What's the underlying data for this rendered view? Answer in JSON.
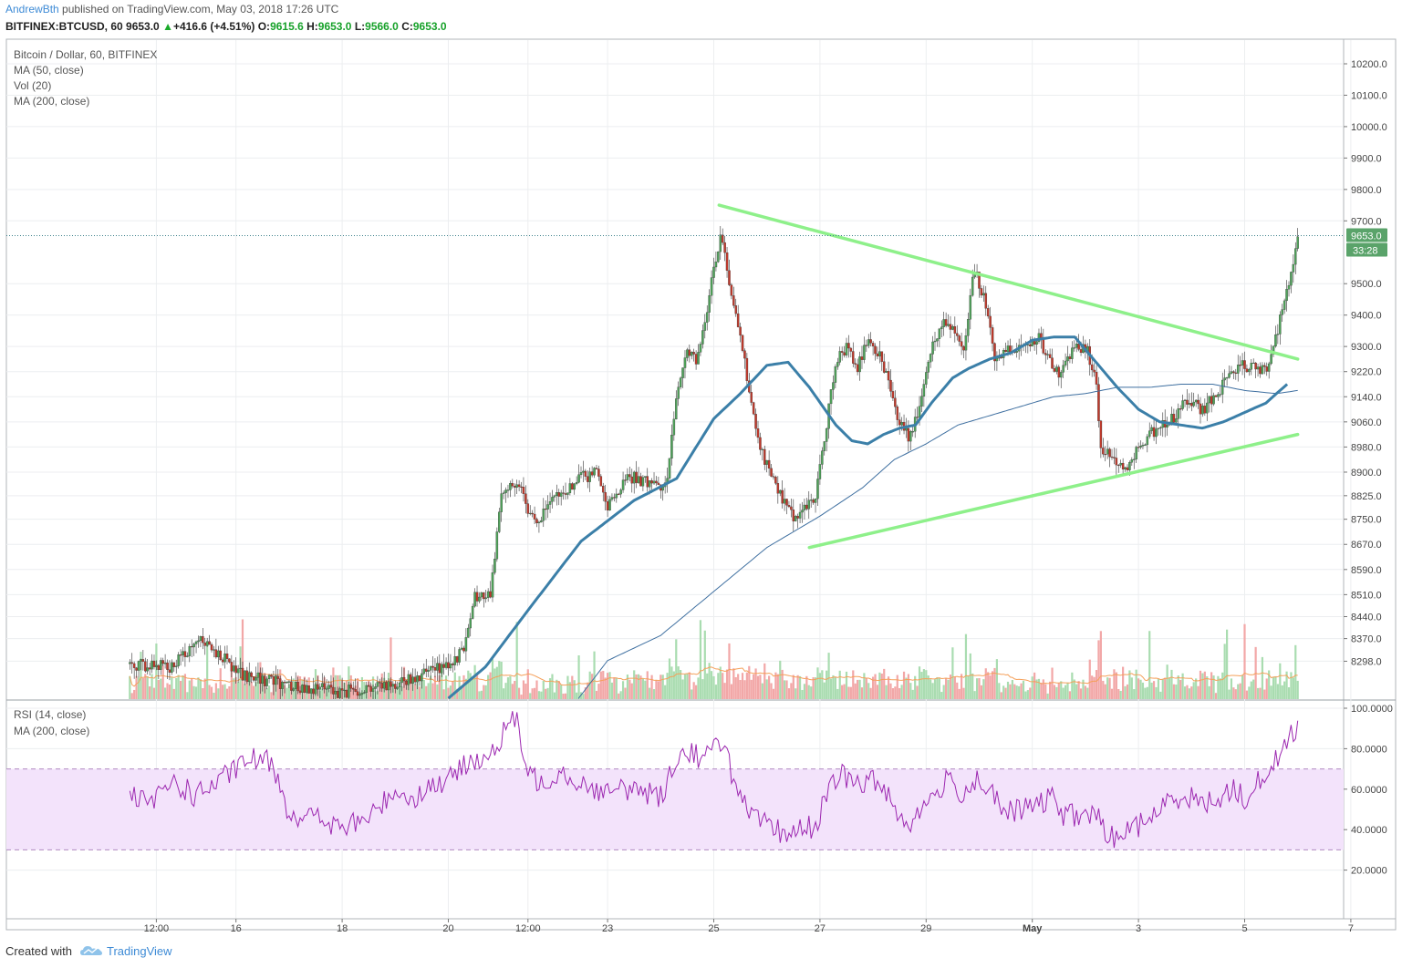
{
  "header": {
    "author": "AndrewBth",
    "published_text": "published on TradingView.com, May 03, 2018 17:26 UTC",
    "symbol": "BITFINEX:BTCUSD, 60",
    "last": "9653.0",
    "change_arrow": "▲",
    "change": "+416.6 (+4.51%)",
    "o_label": "O:",
    "o": "9615.6",
    "h_label": "H:",
    "h": "9653.0",
    "l_label": "L:",
    "l": "9566.0",
    "c_label": "C:",
    "c": "9653.0"
  },
  "legend": {
    "title": "Bitcoin / Dollar, 60, BITFINEX",
    "ma50": "MA (50, close)",
    "vol": "Vol (20)",
    "ma200": "MA (200, close)",
    "rsi": "RSI (14, close)",
    "rsi_ma": "MA (200, close)"
  },
  "footer": {
    "created_with": "Created with",
    "brand": "TradingView"
  },
  "colors": {
    "up": "#4fa35a",
    "down": "#c0392b",
    "vol_up": "#a9dcb0",
    "vol_down": "#f2a7a7",
    "ma50": "#3b7fa8",
    "ma200": "#3e6fa0",
    "trend": "#8ef08a",
    "rsi": "#9c27b0",
    "rsi_band": "#f3e3fb",
    "vol_ma": "#f5a05a",
    "last_tag": "#5aa36a"
  },
  "chart_data": [
    {
      "type": "candlestick",
      "title": "Bitcoin / Dollar, 60, BITFINEX",
      "y_tick_labels": [
        "10200.0",
        "10100.0",
        "10000.0",
        "9900.0",
        "9800.0",
        "9700.0",
        "9500.0",
        "9400.0",
        "9300.0",
        "9220.0",
        "9140.0",
        "9060.0",
        "8980.0",
        "8900.0",
        "8825.0",
        "8750.0",
        "8670.0",
        "8590.0",
        "8510.0",
        "8440.0",
        "8370.0",
        "8298.0"
      ],
      "x_tick_labels": [
        "12:00",
        "16",
        "18",
        "20",
        "12:00",
        "23",
        "25",
        "27",
        "29",
        "May",
        "3",
        "5",
        "7"
      ],
      "x_axis_days": [
        14.5,
        16,
        18,
        20,
        21.5,
        23,
        25,
        27,
        29,
        31,
        33,
        35,
        37
      ],
      "last_price": "9653.0",
      "countdown": "33:28",
      "anchors": [
        [
          14.0,
          8290
        ],
        [
          14.8,
          8280
        ],
        [
          15.3,
          8360
        ],
        [
          15.7,
          8320
        ],
        [
          16.0,
          8260
        ],
        [
          17.0,
          8220
        ],
        [
          18.0,
          8200
        ],
        [
          19.0,
          8230
        ],
        [
          19.9,
          8280
        ],
        [
          20.3,
          8330
        ],
        [
          20.5,
          8500
        ],
        [
          20.8,
          8520
        ],
        [
          21.0,
          8830
        ],
        [
          21.3,
          8870
        ],
        [
          21.6,
          8740
        ],
        [
          22.0,
          8810
        ],
        [
          22.5,
          8880
        ],
        [
          22.8,
          8900
        ],
        [
          23.0,
          8790
        ],
        [
          23.4,
          8890
        ],
        [
          23.8,
          8860
        ],
        [
          24.1,
          8850
        ],
        [
          24.3,
          9160
        ],
        [
          24.5,
          9280
        ],
        [
          24.7,
          9260
        ],
        [
          24.9,
          9420
        ],
        [
          25.0,
          9560
        ],
        [
          25.15,
          9660
        ],
        [
          25.3,
          9470
        ],
        [
          25.5,
          9330
        ],
        [
          25.7,
          9120
        ],
        [
          25.9,
          8960
        ],
        [
          26.1,
          8880
        ],
        [
          26.3,
          8810
        ],
        [
          26.5,
          8760
        ],
        [
          26.7,
          8780
        ],
        [
          26.9,
          8820
        ],
        [
          27.0,
          8910
        ],
        [
          27.3,
          9260
        ],
        [
          27.5,
          9300
        ],
        [
          27.7,
          9230
        ],
        [
          27.9,
          9320
        ],
        [
          28.1,
          9280
        ],
        [
          28.3,
          9190
        ],
        [
          28.5,
          9060
        ],
        [
          28.7,
          9010
        ],
        [
          28.9,
          9130
        ],
        [
          29.1,
          9290
        ],
        [
          29.3,
          9380
        ],
        [
          29.5,
          9350
        ],
        [
          29.7,
          9280
        ],
        [
          29.9,
          9540
        ],
        [
          30.1,
          9460
        ],
        [
          30.3,
          9260
        ],
        [
          30.5,
          9290
        ],
        [
          30.8,
          9300
        ],
        [
          31.1,
          9330
        ],
        [
          31.3,
          9270
        ],
        [
          31.5,
          9200
        ],
        [
          31.8,
          9290
        ],
        [
          32.0,
          9300
        ],
        [
          32.2,
          9200
        ],
        [
          32.3,
          8960
        ],
        [
          32.5,
          8960
        ],
        [
          32.8,
          8900
        ],
        [
          33.0,
          8980
        ],
        [
          33.3,
          9030
        ],
        [
          33.6,
          9060
        ],
        [
          33.9,
          9130
        ],
        [
          34.2,
          9100
        ],
        [
          34.5,
          9150
        ],
        [
          34.8,
          9230
        ],
        [
          35.1,
          9240
        ],
        [
          35.4,
          9220
        ],
        [
          35.6,
          9340
        ],
        [
          35.8,
          9480
        ],
        [
          36.0,
          9653
        ]
      ],
      "ma50_path": [
        [
          14.0,
          7900
        ],
        [
          18.0,
          7960
        ],
        [
          20.0,
          8180
        ],
        [
          20.7,
          8280
        ],
        [
          21.5,
          8460
        ],
        [
          22.5,
          8680
        ],
        [
          23.5,
          8810
        ],
        [
          24.3,
          8880
        ],
        [
          25.0,
          9070
        ],
        [
          25.5,
          9150
        ],
        [
          26.0,
          9240
        ],
        [
          26.4,
          9250
        ],
        [
          26.8,
          9170
        ],
        [
          27.3,
          9050
        ],
        [
          27.6,
          9000
        ],
        [
          27.9,
          8990
        ],
        [
          28.2,
          9020
        ],
        [
          28.5,
          9040
        ],
        [
          28.8,
          9050
        ],
        [
          29.1,
          9120
        ],
        [
          29.5,
          9200
        ],
        [
          29.8,
          9230
        ],
        [
          30.2,
          9260
        ],
        [
          30.6,
          9280
        ],
        [
          31.0,
          9320
        ],
        [
          31.4,
          9330
        ],
        [
          31.8,
          9330
        ],
        [
          32.2,
          9250
        ],
        [
          32.6,
          9170
        ],
        [
          33.0,
          9100
        ],
        [
          33.4,
          9060
        ],
        [
          33.8,
          9050
        ],
        [
          34.2,
          9040
        ],
        [
          34.6,
          9060
        ],
        [
          35.0,
          9090
        ],
        [
          35.4,
          9120
        ],
        [
          35.8,
          9180
        ]
      ],
      "ma200_path": [
        [
          14.0,
          7700
        ],
        [
          20.0,
          7850
        ],
        [
          22.0,
          8080
        ],
        [
          23.0,
          8300
        ],
        [
          24.0,
          8380
        ],
        [
          25.0,
          8520
        ],
        [
          26.0,
          8660
        ],
        [
          27.0,
          8760
        ],
        [
          27.8,
          8850
        ],
        [
          28.4,
          8940
        ],
        [
          29.0,
          8990
        ],
        [
          29.6,
          9050
        ],
        [
          30.2,
          9080
        ],
        [
          30.8,
          9110
        ],
        [
          31.4,
          9140
        ],
        [
          32.0,
          9150
        ],
        [
          32.6,
          9170
        ],
        [
          33.2,
          9170
        ],
        [
          33.8,
          9180
        ],
        [
          34.4,
          9180
        ],
        [
          35.0,
          9160
        ],
        [
          35.6,
          9150
        ],
        [
          36.0,
          9160
        ]
      ],
      "trend_lines": [
        {
          "name": "resistance",
          "from": [
            25.1,
            9750
          ],
          "to": [
            36.0,
            9260
          ]
        },
        {
          "name": "support",
          "from": [
            26.8,
            8660
          ],
          "to": [
            36.0,
            9020
          ]
        }
      ]
    },
    {
      "type": "line",
      "title": "RSI (14, close)",
      "y_tick_labels": [
        "100.0000",
        "80.0000",
        "60.0000",
        "40.0000",
        "20.0000"
      ],
      "band": [
        30,
        70
      ],
      "anchors": [
        [
          14.0,
          56
        ],
        [
          14.4,
          52
        ],
        [
          14.8,
          64
        ],
        [
          15.2,
          57
        ],
        [
          15.6,
          62
        ],
        [
          16.0,
          70
        ],
        [
          16.3,
          75
        ],
        [
          16.7,
          73
        ],
        [
          17.0,
          48
        ],
        [
          17.5,
          46
        ],
        [
          18.0,
          40
        ],
        [
          18.3,
          44
        ],
        [
          18.6,
          48
        ],
        [
          19.0,
          60
        ],
        [
          19.3,
          55
        ],
        [
          19.7,
          62
        ],
        [
          20.0,
          64
        ],
        [
          20.4,
          74
        ],
        [
          20.6,
          76
        ],
        [
          20.9,
          77
        ],
        [
          21.1,
          94
        ],
        [
          21.3,
          92
        ],
        [
          21.5,
          67
        ],
        [
          21.8,
          63
        ],
        [
          22.1,
          70
        ],
        [
          22.4,
          64
        ],
        [
          22.7,
          61
        ],
        [
          23.0,
          58
        ],
        [
          23.3,
          60
        ],
        [
          23.6,
          60
        ],
        [
          24.0,
          56
        ],
        [
          24.3,
          76
        ],
        [
          24.6,
          79
        ],
        [
          24.8,
          74
        ],
        [
          25.0,
          80
        ],
        [
          25.2,
          86
        ],
        [
          25.4,
          60
        ],
        [
          25.7,
          46
        ],
        [
          26.0,
          42
        ],
        [
          26.3,
          38
        ],
        [
          26.6,
          40
        ],
        [
          26.9,
          42
        ],
        [
          27.2,
          60
        ],
        [
          27.4,
          68
        ],
        [
          27.7,
          62
        ],
        [
          28.0,
          64
        ],
        [
          28.3,
          58
        ],
        [
          28.6,
          42
        ],
        [
          28.8,
          46
        ],
        [
          29.1,
          56
        ],
        [
          29.4,
          64
        ],
        [
          29.7,
          58
        ],
        [
          30.0,
          66
        ],
        [
          30.2,
          58
        ],
        [
          30.5,
          48
        ],
        [
          30.8,
          50
        ],
        [
          31.1,
          52
        ],
        [
          31.4,
          56
        ],
        [
          31.6,
          47
        ],
        [
          31.9,
          47
        ],
        [
          32.2,
          48
        ],
        [
          32.4,
          36
        ],
        [
          32.7,
          38
        ],
        [
          33.0,
          42
        ],
        [
          33.3,
          48
        ],
        [
          33.6,
          54
        ],
        [
          33.9,
          58
        ],
        [
          34.2,
          52
        ],
        [
          34.5,
          56
        ],
        [
          34.8,
          60
        ],
        [
          35.1,
          54
        ],
        [
          35.3,
          66
        ],
        [
          35.6,
          74
        ],
        [
          35.8,
          84
        ],
        [
          36.0,
          92
        ]
      ]
    }
  ]
}
